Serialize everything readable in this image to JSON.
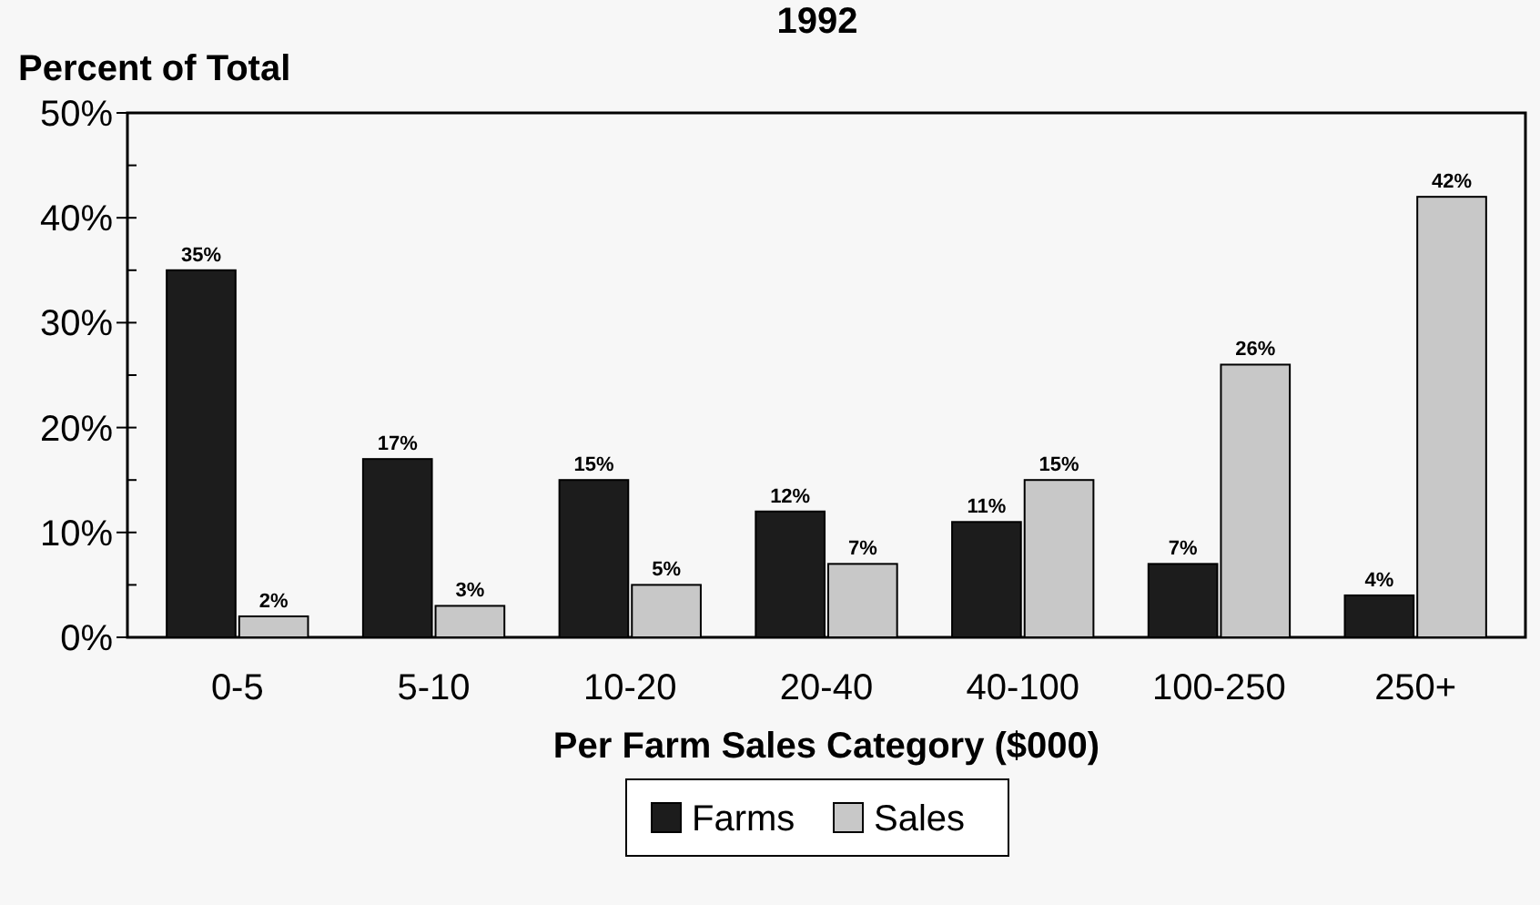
{
  "chart_data": {
    "type": "bar",
    "title": "1992",
    "ylabel": "Percent of Total",
    "xlabel": "Per Farm Sales Category ($000)",
    "categories": [
      "0-5",
      "5-10",
      "10-20",
      "20-40",
      "40-100",
      "100-250",
      "250+"
    ],
    "series": [
      {
        "name": "Farms",
        "color": "#1c1c1c",
        "values": [
          35,
          17,
          15,
          12,
          11,
          7,
          4
        ],
        "value_labels": [
          "35%",
          "17%",
          "15%",
          "12%",
          "11%",
          "7%",
          "4%"
        ]
      },
      {
        "name": "Sales",
        "color": "#c8c8c8",
        "values": [
          2,
          3,
          5,
          7,
          15,
          26,
          42
        ],
        "value_labels": [
          "2%",
          "3%",
          "5%",
          "7%",
          "15%",
          "26%",
          "42%"
        ]
      }
    ],
    "ylim": [
      0,
      50
    ],
    "yticks": [
      {
        "value": 0,
        "label": "0%"
      },
      {
        "value": 5,
        "label": null
      },
      {
        "value": 10,
        "label": "10%"
      },
      {
        "value": 15,
        "label": null
      },
      {
        "value": 20,
        "label": "20%"
      },
      {
        "value": 25,
        "label": null
      },
      {
        "value": 30,
        "label": "30%"
      },
      {
        "value": 35,
        "label": null
      },
      {
        "value": 40,
        "label": "40%"
      },
      {
        "value": 45,
        "label": null
      },
      {
        "value": 50,
        "label": "50%"
      }
    ],
    "grid": false,
    "legend": "bottom"
  }
}
